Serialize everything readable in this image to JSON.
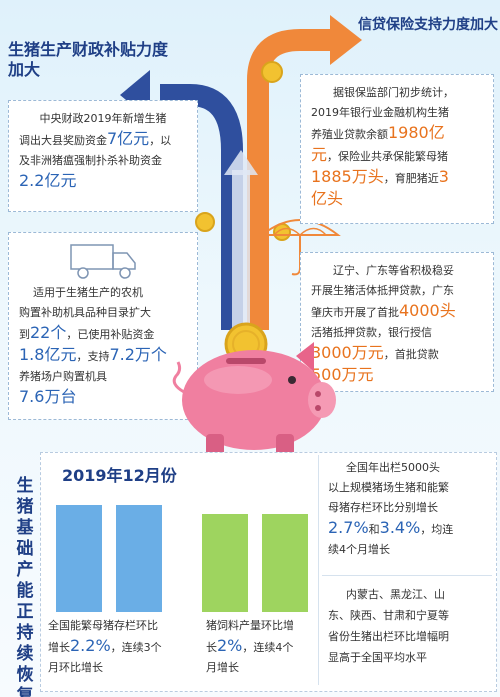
{
  "left_branch": {
    "title": "生猪生产财政补贴力度加大",
    "box1": {
      "line1": "中央财政2019年新增生猪",
      "line2_pre": "调出大县奖励资金",
      "line2_num": "7亿元",
      "line2_post": "，以",
      "line3": "及非洲猪瘟强制扑杀补助资金",
      "line4": "2.2亿元"
    },
    "box2": {
      "line1": "适用于生猪生产的农机",
      "line2": "购置补助机具品种目录扩大",
      "line3_pre": "到",
      "line3_num": "22个",
      "line3_post": "，已使用补贴资金",
      "line4_num1": "1.8亿元",
      "line4_mid": "，支持",
      "line4_num2": "7.2万个",
      "line5": "养猪场户购置机具",
      "line6": "7.6万台"
    }
  },
  "right_branch": {
    "title": "信贷保险支持力度加大",
    "box1": {
      "line1": "据银保监部门初步统计，",
      "line2": "2019年银行业金融机构生猪",
      "line3_pre": "养殖业贷款余额",
      "line3_num": "1980亿",
      "line4_num": "元",
      "line4_post": "，保险业共承保能繁母猪",
      "line5_num": "1885万头",
      "line5_mid": "，育肥猪近",
      "line5_num2": "3",
      "line6": "亿头"
    },
    "box2": {
      "line1": "辽宁、广东等省积极稳妥",
      "line2": "开展生猪活体抵押贷款，广东",
      "line3_pre": "肇庆市开展了首批",
      "line3_num": "4000头",
      "line4": "活猪抵押贷款，银行授信",
      "line5_num": "3000万元",
      "line5_post": "，首批贷款",
      "line6_num": "500万元"
    }
  },
  "bottom": {
    "side_title": "生猪基础产能正持续恢复",
    "month_label": "2019年12月份",
    "chart_data": {
      "type": "bar",
      "charts": [
        {
          "label_line1": "全国能繁母猪存栏环比",
          "label_pre": "增长",
          "label_num": "2.2%",
          "label_post": "，连续3个",
          "label_line3": "月环比增长",
          "values": [
            2.2,
            2.2
          ],
          "color": "#6aaee6"
        },
        {
          "label_line1": "猪饲料产量环比增",
          "label_pre": "长",
          "label_num": "2%",
          "label_post": "，连续4个",
          "label_line3": "月增长",
          "values": [
            2,
            2
          ],
          "color": "#9ed45f"
        }
      ]
    },
    "note1": {
      "line1": "全国年出栏5000头",
      "line2": "以上规模猪场生猪和能繁",
      "line3": "母猪存栏环比分别增长",
      "num1": "2.7%",
      "and": "和",
      "num2": "3.4%",
      "post": "，均连",
      "line5": "续4个月增长"
    },
    "note2": {
      "line1": "内蒙古、黑龙江、山",
      "line2": "东、陕西、甘肃和宁夏等",
      "line3": "省份生猪出栏环比增幅明",
      "line4": "显高于全国平均水平"
    }
  },
  "colors": {
    "blue_arrow": "#2f4f9e",
    "orange_arrow": "#f0883a",
    "pig": "#f07fa0",
    "coin": "#f2c230"
  }
}
